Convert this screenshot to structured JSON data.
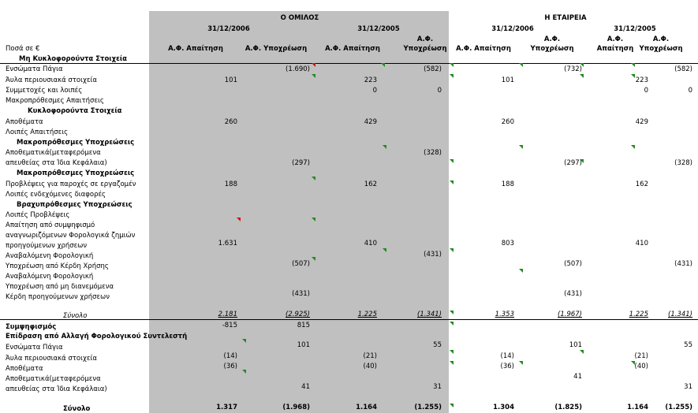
{
  "header": {
    "group_title": "Ο ΟΜΙΛΟΣ",
    "company_title": "Η ΕΤΑΙΡΕΙΑ",
    "date_2006": "31/12/2006",
    "date_2005": "31/12/2005",
    "amounts_label": "Ποσά σε €",
    "col_asset": "Α.Φ. Απαίτηση",
    "col_liab": "Α.Φ. Υποχρέωση",
    "col_liab_l1": "Α.Φ.",
    "col_liab_l2": "Υποχρέωση",
    "col_asset_l1": "Α.Φ.",
    "col_asset_l2": "Απαίτηση"
  },
  "labels": {
    "noncurrent_assets": "Μη Κυκλοφορούντα Στοιχεία",
    "tangible": "Ενσώματα Πάγια",
    "intangible": "Άυλα περιουσιακά στοιχεία",
    "participations": "Συμμετοχές και λοιπές",
    "lt_receivables": "Μακροπρόθεσμες Απαιτήσεις",
    "current_assets": "Κυκλοφορούντα Στοιχεία",
    "inventories": "Αποθέματα",
    "other_receivables": "Λοιπές Απαιτήσεις",
    "lt_liabilities_1": "Μακροπρόθεσμες Υποχρεώσεις",
    "reserves_1": "Αποθεματικά(μεταφερόμενα",
    "reserves_2": "απευθείας στα Ίδια Κεφάλαια)",
    "lt_liabilities_2": "Μακροπρόθεσμες Υποχρεώσεις",
    "employee_provisions": "Προβλέψεις για παροχές σε εργαζομέν",
    "contingent": "Λοιπές ενδεχόμενες διαφορές",
    "st_liabilities": "Βραχυπρόθεσμες Υποχρεώσεις",
    "other_provisions": "Λοιπές Προβλέψεις",
    "tax_loss_1": "Απαίτηση από συμψηφισμό",
    "tax_loss_2": "αναγνωριζόμενων Φορολογικά ζημιών",
    "tax_loss_3": "προηγούμενων χρήσεων",
    "deferred_tax": "Αναβαλόμενη Φορολογική",
    "profit_liab_1": "Υποχρέωση από Κέρδη Χρήσης",
    "profit_liab_2": "Αναβαλόμενη Φορολογική",
    "undistributed_1": "Υποχρέωση από μη διανεμόμενα",
    "undistributed_2": "Κέρδη προηγούμενων χρήσεων",
    "total": "Σύνολο",
    "offset": "Συμψηφισμός",
    "rate_change": "Επίδραση από Αλλαγή Φορολογικού Συντελεστή",
    "tangible_2": "Ενσώματα Πάγια",
    "intangible_2": "Άυλα περιουσιακά στοιχεία",
    "inventories_2": "Αποθέματα",
    "reserves2_1": "Αποθεματικά(μεταφερόμενα",
    "reserves2_2": "απευθείας στα Ίδια Κεφάλαια)",
    "grand_total": "Σύνολο"
  },
  "values": {
    "tangible": [
      "",
      "(1.690)",
      "",
      "(582)",
      "",
      "(732)",
      "",
      "(582)"
    ],
    "intangible": [
      "101",
      "",
      "223",
      "",
      "101",
      "",
      "223",
      ""
    ],
    "participations": [
      "",
      "",
      "0",
      "0",
      "",
      "",
      "0",
      "0"
    ],
    "inventories": [
      "260",
      "",
      "429",
      "",
      "260",
      "",
      "429",
      ""
    ],
    "reserves_a": [
      "",
      "",
      "",
      "(328)",
      "",
      "",
      "",
      ""
    ],
    "reserves_b": [
      "",
      "(297)",
      "",
      "",
      "",
      "(297)",
      "",
      "(328)"
    ],
    "employee_provisions": [
      "188",
      "",
      "162",
      "",
      "188",
      "",
      "162",
      ""
    ],
    "tax_loss_b": [
      "",
      "",
      "410",
      "",
      "",
      "",
      "",
      ""
    ],
    "tax_loss_c": [
      "1.631",
      "",
      "",
      "",
      "803",
      "",
      "410",
      ""
    ],
    "deferred_tax": [
      "",
      "",
      "",
      "(431)",
      "",
      "",
      "",
      ""
    ],
    "profit_liab": [
      "",
      "(507)",
      "",
      "",
      "",
      "(507)",
      "",
      "(431)"
    ],
    "undistributed": [
      "",
      "(431)",
      "",
      "",
      "",
      "(431)",
      "",
      ""
    ],
    "total": [
      "2.181",
      "(2.925)",
      "1.225",
      "(1.341)",
      "1.353",
      "(1.967)",
      "1.225",
      "(1.341)"
    ],
    "offset": [
      "-815",
      "815",
      "",
      "",
      "",
      "",
      "",
      ""
    ],
    "tangible_2": [
      "",
      "101",
      "",
      "55",
      "",
      "101",
      "",
      "55"
    ],
    "intangible_2": [
      "(14)",
      "",
      "(21)",
      "",
      "(14)",
      "",
      "(21)",
      ""
    ],
    "inventories_2": [
      "(36)",
      "",
      "(40)",
      "",
      "(36)",
      "",
      "(40)",
      ""
    ],
    "reserves2_a": [
      "",
      "",
      "",
      "",
      "",
      "41",
      "",
      ""
    ],
    "reserves2_b": [
      "",
      "41",
      "",
      "31",
      "",
      "",
      "",
      "31"
    ],
    "grand_total": [
      "1.317",
      "(1.968)",
      "1.164",
      "(1.255)",
      "1.304",
      "(1.825)",
      "1.164",
      "(1.255)"
    ]
  }
}
